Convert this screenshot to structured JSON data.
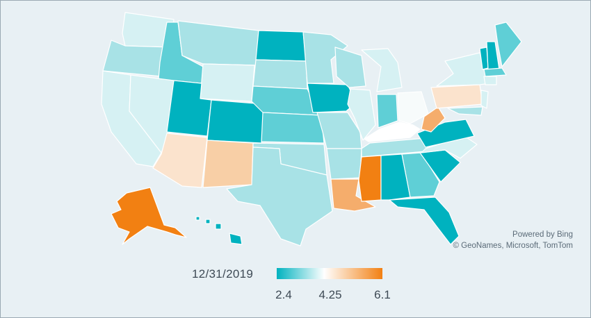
{
  "map": {
    "attribution_line1": "Powered by Bing",
    "attribution_line2": "© GeoNames, Microsoft, TomTom"
  },
  "legend": {
    "date": "12/31/2019",
    "min_label": "2.4",
    "mid_label": "4.25",
    "max_label": "6.1",
    "min_value": 2.4,
    "mid_value": 4.25,
    "max_value": 6.1,
    "color_low": "#00b2bf",
    "color_mid": "#ffffff",
    "color_high": "#f28012"
  },
  "colors": {
    "background": "#e8f0f4",
    "teal_dark": "#00b2bf",
    "teal_mid": "#5fcfd6",
    "teal_light": "#a8e2e6",
    "teal_pale": "#d6f1f3",
    "near_white": "#f7fbfb",
    "orange_pale": "#fbe3cd",
    "orange_light": "#f8cfa6",
    "orange_mid": "#f5ad6c",
    "orange_dark": "#f28012"
  }
}
